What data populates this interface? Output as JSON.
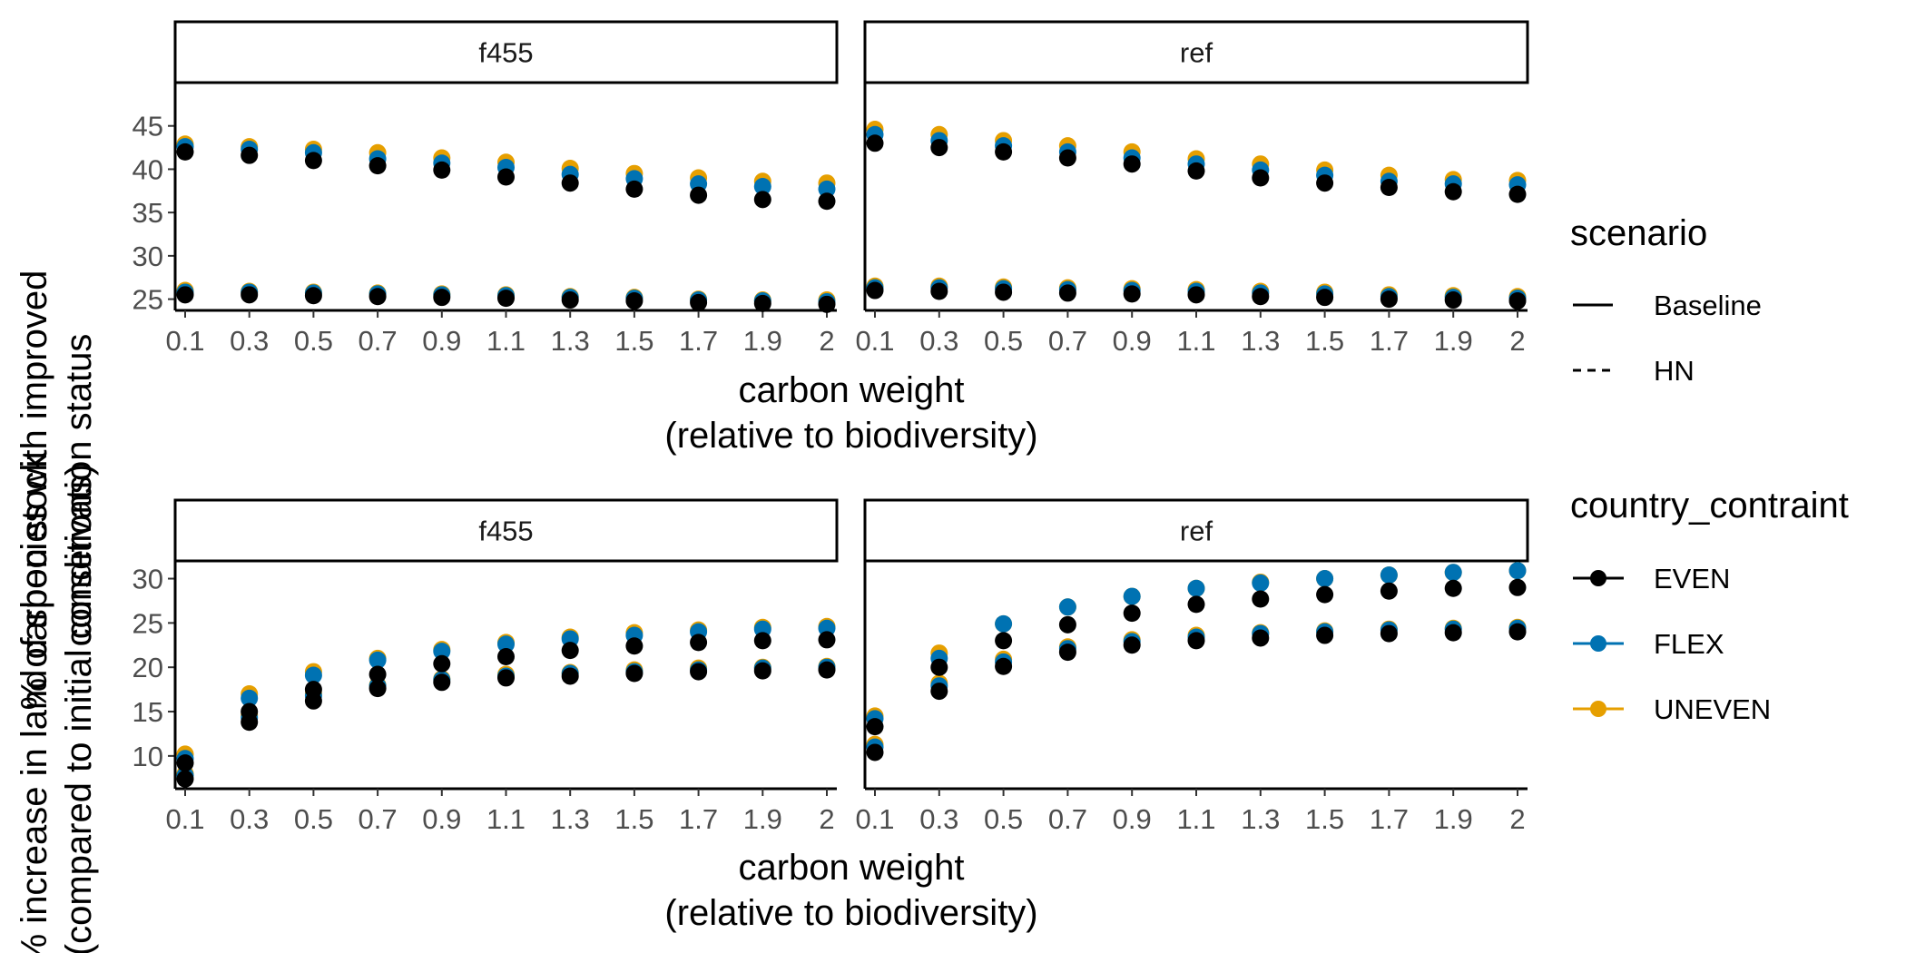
{
  "colors": {
    "EVEN": "#000000",
    "FLEX": "#0072B2",
    "UNEVEN": "#E69F00"
  },
  "legend": {
    "scenario": {
      "title": "scenario",
      "items": [
        {
          "label": "Baseline",
          "linetype": "solid"
        },
        {
          "label": "HN",
          "linetype": "dashed"
        }
      ]
    },
    "country": {
      "title": "country_contraint",
      "items": [
        {
          "label": "EVEN",
          "color_key": "EVEN"
        },
        {
          "label": "FLEX",
          "color_key": "FLEX"
        },
        {
          "label": "UNEVEN",
          "color_key": "UNEVEN"
        }
      ]
    },
    "placement": "right"
  },
  "chart_data": [
    {
      "type": "scatter",
      "xlabel": [
        "carbon weight",
        "(relative to biodiversity)"
      ],
      "ylabel": [
        "% of species with improved",
        "conservation status"
      ],
      "categories": [
        "0.1",
        "0.3",
        "0.5",
        "0.7",
        "0.9",
        "1.1",
        "1.3",
        "1.5",
        "1.7",
        "1.9",
        "2"
      ],
      "yticks": [
        25,
        30,
        35,
        40,
        45
      ],
      "ylim": [
        23.7,
        50
      ],
      "grid": false,
      "facets": [
        {
          "label": "f455",
          "series": [
            {
              "scenario": "Baseline",
              "constraint": "UNEVEN",
              "values": [
                42.9,
                42.6,
                42.3,
                41.9,
                41.3,
                40.8,
                40.1,
                39.5,
                39.0,
                38.6,
                38.4
              ]
            },
            {
              "scenario": "Baseline",
              "constraint": "FLEX",
              "values": [
                42.6,
                42.3,
                41.9,
                41.2,
                40.7,
                40.2,
                39.4,
                38.9,
                38.3,
                38.0,
                37.7
              ]
            },
            {
              "scenario": "Baseline",
              "constraint": "EVEN",
              "values": [
                42.0,
                41.6,
                41.0,
                40.4,
                39.9,
                39.1,
                38.4,
                37.7,
                37.0,
                36.5,
                36.3
              ]
            },
            {
              "scenario": "HN",
              "constraint": "UNEVEN",
              "values": [
                26.0,
                25.9,
                25.8,
                25.7,
                25.6,
                25.5,
                25.3,
                25.2,
                25.0,
                24.9,
                24.9
              ]
            },
            {
              "scenario": "HN",
              "constraint": "FLEX",
              "values": [
                25.8,
                25.8,
                25.7,
                25.6,
                25.5,
                25.4,
                25.2,
                25.1,
                24.9,
                24.8,
                24.7
              ]
            },
            {
              "scenario": "HN",
              "constraint": "EVEN",
              "values": [
                25.5,
                25.5,
                25.4,
                25.3,
                25.2,
                25.1,
                24.9,
                24.8,
                24.6,
                24.5,
                24.4
              ]
            }
          ]
        },
        {
          "label": "ref",
          "series": [
            {
              "scenario": "Baseline",
              "constraint": "UNEVEN",
              "values": [
                44.6,
                44.0,
                43.3,
                42.7,
                42.0,
                41.2,
                40.6,
                39.9,
                39.3,
                38.8,
                38.7
              ]
            },
            {
              "scenario": "Baseline",
              "constraint": "FLEX",
              "values": [
                44.0,
                43.3,
                42.7,
                42.0,
                41.3,
                40.6,
                39.9,
                39.3,
                38.6,
                38.3,
                38.2
              ]
            },
            {
              "scenario": "Baseline",
              "constraint": "EVEN",
              "values": [
                43.0,
                42.5,
                42.0,
                41.3,
                40.6,
                39.8,
                39.0,
                38.4,
                37.9,
                37.4,
                37.1
              ]
            },
            {
              "scenario": "HN",
              "constraint": "UNEVEN",
              "values": [
                26.5,
                26.5,
                26.4,
                26.3,
                26.2,
                26.1,
                25.9,
                25.8,
                25.5,
                25.4,
                25.3
              ]
            },
            {
              "scenario": "HN",
              "constraint": "FLEX",
              "values": [
                26.3,
                26.3,
                26.2,
                26.1,
                26.0,
                25.9,
                25.7,
                25.6,
                25.3,
                25.2,
                25.1
              ]
            },
            {
              "scenario": "HN",
              "constraint": "EVEN",
              "values": [
                26.0,
                25.9,
                25.8,
                25.7,
                25.6,
                25.5,
                25.3,
                25.2,
                25.0,
                24.9,
                24.8
              ]
            }
          ]
        }
      ]
    },
    {
      "type": "scatter",
      "xlabel": [
        "carbon weight",
        "(relative to biodiversity)"
      ],
      "ylabel": [
        "% increase in land carbon stock",
        "(compared to initial conditions)"
      ],
      "categories": [
        "0.1",
        "0.3",
        "0.5",
        "0.7",
        "0.9",
        "1.1",
        "1.3",
        "1.5",
        "1.7",
        "1.9",
        "2"
      ],
      "yticks": [
        10,
        15,
        20,
        25,
        30
      ],
      "ylim": [
        6.3,
        32
      ],
      "grid": false,
      "facets": [
        {
          "label": "f455",
          "series": [
            {
              "scenario": "Baseline",
              "constraint": "UNEVEN",
              "values": [
                10.2,
                17.0,
                19.5,
                21.0,
                22.0,
                22.8,
                23.4,
                23.9,
                24.2,
                24.5,
                24.6
              ]
            },
            {
              "scenario": "Baseline",
              "constraint": "FLEX",
              "values": [
                9.7,
                16.5,
                19.1,
                20.8,
                21.8,
                22.6,
                23.2,
                23.6,
                24.0,
                24.3,
                24.4
              ]
            },
            {
              "scenario": "Baseline",
              "constraint": "EVEN",
              "values": [
                9.2,
                15.0,
                17.5,
                19.2,
                20.4,
                21.2,
                21.9,
                22.4,
                22.8,
                23.0,
                23.1
              ]
            },
            {
              "scenario": "HN",
              "constraint": "UNEVEN",
              "values": [
                8.0,
                14.6,
                17.0,
                18.0,
                18.7,
                19.2,
                19.4,
                19.7,
                19.9,
                20.0,
                20.1
              ]
            },
            {
              "scenario": "HN",
              "constraint": "FLEX",
              "values": [
                7.8,
                14.3,
                16.8,
                17.9,
                18.6,
                19.0,
                19.3,
                19.5,
                19.7,
                19.9,
                20.0
              ]
            },
            {
              "scenario": "HN",
              "constraint": "EVEN",
              "values": [
                7.4,
                13.8,
                16.2,
                17.6,
                18.3,
                18.8,
                19.0,
                19.3,
                19.5,
                19.6,
                19.7
              ]
            }
          ]
        },
        {
          "label": "ref",
          "series": [
            {
              "scenario": "Baseline",
              "constraint": "UNEVEN",
              "values": [
                14.5,
                21.6,
                24.9,
                26.8,
                28.0,
                28.9,
                29.6,
                30.0,
                30.4,
                30.7,
                30.9
              ]
            },
            {
              "scenario": "Baseline",
              "constraint": "FLEX",
              "values": [
                14.2,
                21.0,
                24.9,
                26.8,
                28.0,
                28.9,
                29.5,
                30.0,
                30.4,
                30.7,
                30.9
              ]
            },
            {
              "scenario": "Baseline",
              "constraint": "EVEN",
              "values": [
                13.3,
                20.0,
                23.0,
                24.8,
                26.1,
                27.1,
                27.7,
                28.2,
                28.6,
                28.9,
                29.0
              ]
            },
            {
              "scenario": "HN",
              "constraint": "UNEVEN",
              "values": [
                11.3,
                18.2,
                20.9,
                22.3,
                23.1,
                23.6,
                23.9,
                24.1,
                24.3,
                24.4,
                24.5
              ]
            },
            {
              "scenario": "HN",
              "constraint": "FLEX",
              "values": [
                11.0,
                17.9,
                20.6,
                22.1,
                22.9,
                23.4,
                23.8,
                24.0,
                24.2,
                24.3,
                24.4
              ]
            },
            {
              "scenario": "HN",
              "constraint": "EVEN",
              "values": [
                10.4,
                17.3,
                20.1,
                21.7,
                22.5,
                23.0,
                23.3,
                23.6,
                23.8,
                23.9,
                24.0
              ]
            }
          ]
        }
      ]
    }
  ]
}
